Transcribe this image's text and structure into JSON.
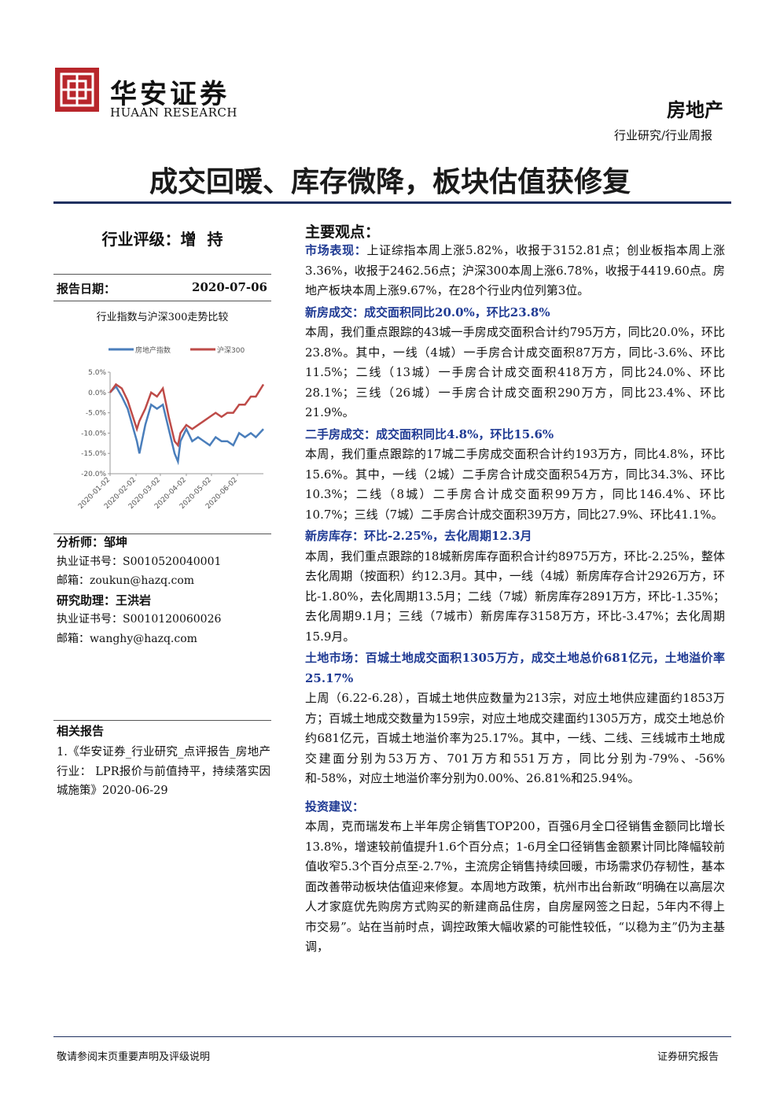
{
  "header": {
    "brand": "华安证券",
    "brand_en": "HUAAN RESEARCH",
    "sector": "房地产",
    "report_type": "行业研究/行业周报"
  },
  "title": "成交回暖、库存微降，板块估值获修复",
  "rating": {
    "label": "行业评级：",
    "value": "增  持"
  },
  "report_date": {
    "label": "报告日期：",
    "value": "2020-07-06"
  },
  "chart_data": {
    "type": "line",
    "title": "行业指数与沪深300走势比较",
    "x": [
      "2020-01-02",
      "2020-01-09",
      "2020-01-16",
      "2020-01-23",
      "2020-02-03",
      "2020-02-06",
      "2020-02-13",
      "2020-02-20",
      "2020-02-27",
      "2020-03-05",
      "2020-03-12",
      "2020-03-19",
      "2020-03-23",
      "2020-03-26",
      "2020-04-02",
      "2020-04-09",
      "2020-04-16",
      "2020-04-23",
      "2020-04-30",
      "2020-05-07",
      "2020-05-14",
      "2020-05-21",
      "2020-05-28",
      "2020-06-04",
      "2020-06-11",
      "2020-06-18",
      "2020-06-24",
      "2020-07-03"
    ],
    "series": [
      {
        "name": "房地产指数",
        "color": "#4a7ebb",
        "values": [
          0,
          1.5,
          -1,
          -4,
          -12,
          -15,
          -8,
          -3,
          -4,
          -3,
          -9,
          -15,
          -17,
          -12,
          -9,
          -12,
          -11,
          -12,
          -13,
          -11,
          -12,
          -12,
          -13,
          -10,
          -11,
          -10,
          -11,
          -9
        ]
      },
      {
        "name": "沪深300",
        "color": "#be4b48",
        "values": [
          0,
          2,
          1,
          -2,
          -9,
          -7,
          -4,
          0,
          -1,
          1,
          -6,
          -12,
          -13,
          -10,
          -8,
          -9,
          -8,
          -7,
          -6,
          -5,
          -6,
          -5,
          -5,
          -3,
          -3,
          -1,
          -1,
          2
        ]
      }
    ],
    "xlim": [
      "2020-01-02",
      "2020-07-03"
    ],
    "xticks": [
      "2020-01-02",
      "2020-02-02",
      "2020-03-02",
      "2020-04-02",
      "2020-05-02",
      "2020-06-02"
    ],
    "ylim": [
      -20,
      5
    ],
    "yticks": [
      {
        "value": 5,
        "label": "5.0%"
      },
      {
        "value": 0,
        "label": "0.0%"
      },
      {
        "value": -5,
        "label": "-5.0%"
      },
      {
        "value": -10,
        "label": "-10.0%"
      },
      {
        "value": -15,
        "label": "-15.0%"
      },
      {
        "value": -20,
        "label": "-20.0%"
      }
    ]
  },
  "analysts": [
    {
      "role": "分析师：",
      "name": "邹坤",
      "cert_label": "执业证书号：",
      "cert": "S0010520040001",
      "email_label": "邮箱：",
      "email": "zoukun@hazq.com"
    },
    {
      "role": "研究助理：",
      "name": "王洪岩",
      "cert_label": "执业证书号：",
      "cert": "S0010120060026",
      "email_label": "邮箱：",
      "email": "wanghy@hazq.com"
    }
  ],
  "related": {
    "title": "相关报告",
    "items": [
      "1.《华安证券_行业研究_点评报告_房地产行业： LPR报价与前值持平，持续落实因城施策》2020-06-29"
    ]
  },
  "main": {
    "title": "主要观点：",
    "sections": [
      {
        "heading": "市场表现：",
        "text": "上证综指本周上涨5.82%，收报于3152.81点；创业板指本周上涨3.36%，收报于2462.56点；沪深300本周上涨6.78%，收报于4419.60点。房地产板块本周上涨9.67%，在28个行业内位列第3位。"
      },
      {
        "heading": "新房成交：成交面积同比20.0%，环比23.8%",
        "text": "本周，我们重点跟踪的43城一手房成交面积合计约795万方，同比20.0%，环比23.8%。其中，一线（4城）一手房合计成交面积87万方，同比-3.6%、环比11.5%；二线（13城）一手房合计成交面积418万方，同比24.0%、环比28.1%；三线（26城）一手房合计成交面积290万方，同比23.4%、环比21.9%。"
      },
      {
        "heading": "二手房成交：成交面积同比4.8%，环比15.6%",
        "text": "本周，我们重点跟踪的17城二手房成交面积合计约193万方，同比4.8%，环比15.6%。其中，一线（2城）二手房合计成交面积54万方，同比34.3%、环比10.3%；二线（8城）二手房合计成交面积99万方，同比146.4%、环比10.7%；三线（7城）二手房合计成交面积39万方，同比27.9%、环比41.1%。"
      },
      {
        "heading": "新房库存：环比-2.25%，去化周期12.3月",
        "text": "本周，我们重点跟踪的18城新房库存面积合计约8975万方，环比-2.25%，整体去化周期（按面积）约12.3月。其中，一线（4城）新房库存合计2926万方，环比-1.80%，去化周期13.5月；二线（7城）新房库存2891万方，环比-1.35%；去化周期9.1月；三线（7城市）新房库存3158万方，环比-3.47%；去化周期15.9月。"
      },
      {
        "heading": "土地市场：百城土地成交面积1305万方，成交土地总价681亿元，土地溢价率25.17%",
        "text": "上周（6.22-6.28），百城土地供应数量为213宗，对应土地供应建面约1853万方；百城土地成交数量为159宗，对应土地成交建面约1305万方，成交土地总价约681亿元，百城土地溢价率为25.17%。其中，一线、二线、三线城市土地成交建面分别为53万方、701万方和551万方，同比分别为-79%、-56%和-58%，对应土地溢价率分别为0.00%、26.81%和25.94%。"
      }
    ],
    "investment": {
      "heading": "投资建议：",
      "text": "本周，克而瑞发布上半年房企销售TOP200，百强6月全口径销售金额同比增长13.8%，增速较前值提升1.6个百分点；1-6月全口径销售金额累计同比降幅较前值收窄5.3个百分点至-2.7%，主流房企销售持续回暖，市场需求仍存韧性，基本面改善带动板块估值迎来修复。本周地方政策，杭州市出台新政“明确在以高层次人才家庭优先购房方式购买的新建商品住房，自房屋网签之日起，5年内不得上市交易”。站在当前时点，调控政策大幅收紧的可能性较低，“以稳为主”仍为主基调，"
    }
  },
  "footer": {
    "left": "敬请参阅末页重要声明及评级说明",
    "right": "证券研究报告"
  }
}
